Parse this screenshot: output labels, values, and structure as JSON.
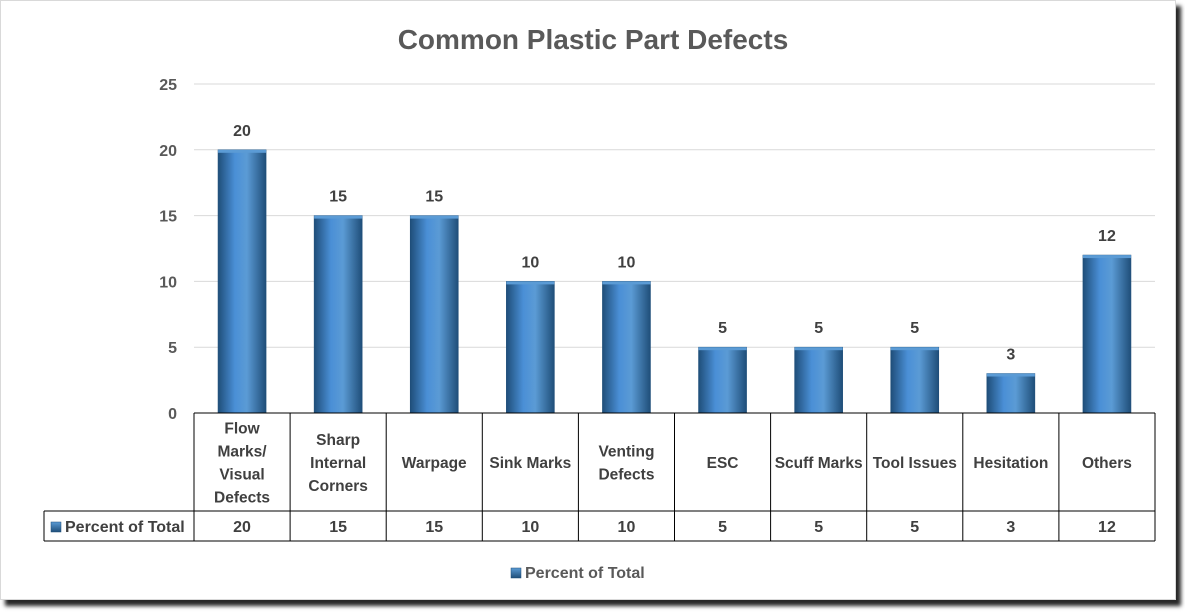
{
  "chart_data": {
    "type": "bar",
    "title": "Common Plastic Part Defects",
    "categories": [
      "Flow Marks/ Visual Defects",
      "Sharp Internal Corners",
      "Warpage",
      "Sink Marks",
      "Venting Defects",
      "ESC",
      "Scuff Marks",
      "Tool Issues",
      "Hesitation",
      "Others"
    ],
    "category_lines": [
      [
        "Flow",
        "Marks/",
        "Visual",
        "Defects"
      ],
      [
        "Sharp",
        "Internal",
        "Corners"
      ],
      [
        "Warpage"
      ],
      [
        "Sink Marks"
      ],
      [
        "Venting",
        "Defects"
      ],
      [
        "ESC"
      ],
      [
        "Scuff Marks"
      ],
      [
        "Tool Issues"
      ],
      [
        "Hesitation"
      ],
      [
        "Others"
      ]
    ],
    "series": [
      {
        "name": "Percent of Total",
        "values": [
          20,
          15,
          15,
          10,
          10,
          5,
          5,
          5,
          3,
          12
        ]
      }
    ],
    "ylim": [
      0,
      25
    ],
    "yticks": [
      0,
      5,
      10,
      15,
      20,
      25
    ],
    "xlabel": "",
    "ylabel": "",
    "grid": true,
    "data_labels": true,
    "data_table": true,
    "legend_position": "bottom",
    "colors": {
      "bar_light": "#5b9bd5",
      "bar_mid": "#2e75b6",
      "bar_dark": "#1f4e79",
      "gridline": "#d9d9d9",
      "table_border": "#000000"
    }
  }
}
